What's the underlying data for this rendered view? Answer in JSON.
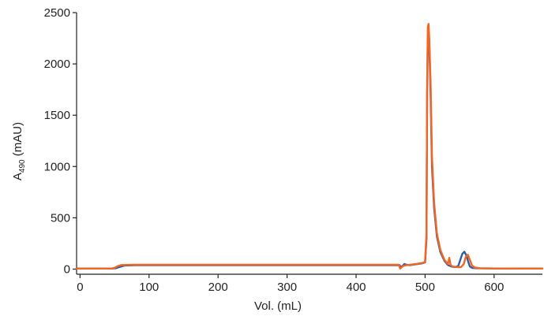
{
  "chart_data": {
    "type": "line",
    "title": "",
    "xlabel": "Vol. (mL)",
    "ylabel_main": "A",
    "ylabel_sub": "490",
    "ylabel_unit": " (mAU)",
    "xlim": [
      -5,
      670
    ],
    "ylim": [
      -50,
      2500
    ],
    "xticks": [
      0,
      100,
      200,
      300,
      400,
      500,
      600
    ],
    "yticks": [
      0,
      500,
      1000,
      1500,
      2000,
      2500
    ],
    "grid": false,
    "legend": "none",
    "series": [
      {
        "color": "#2e5fa3",
        "width": 2.4,
        "x": [
          -5,
          45,
          52,
          58,
          65,
          80,
          150,
          250,
          350,
          450,
          463,
          465,
          468,
          470,
          473,
          478,
          485,
          495,
          500,
          502,
          503,
          504,
          505,
          506,
          508,
          510,
          513,
          517,
          522,
          528,
          533,
          538,
          543,
          548,
          551,
          554,
          557,
          560,
          563,
          565,
          568,
          575,
          600,
          640,
          670
        ],
        "y": [
          5,
          5,
          8,
          22,
          35,
          38,
          38,
          38,
          38,
          38,
          38,
          20,
          35,
          50,
          42,
          38,
          45,
          55,
          65,
          300,
          1700,
          2280,
          2330,
          2200,
          1700,
          1000,
          600,
          320,
          170,
          80,
          40,
          25,
          20,
          30,
          90,
          150,
          170,
          130,
          60,
          25,
          12,
          8,
          6,
          5,
          5
        ]
      },
      {
        "color": "#f26522",
        "width": 2.4,
        "x": [
          -5,
          45,
          50,
          55,
          60,
          80,
          150,
          250,
          350,
          450,
          462,
          464,
          467,
          470,
          475,
          485,
          495,
          500,
          502,
          503,
          504,
          505,
          506,
          508,
          510,
          513,
          517,
          522,
          528,
          533,
          535,
          537,
          540,
          545,
          552,
          556,
          559,
          562,
          565,
          568,
          572,
          580,
          600,
          640,
          670
        ],
        "y": [
          5,
          5,
          12,
          30,
          40,
          42,
          42,
          42,
          42,
          42,
          42,
          5,
          25,
          35,
          40,
          48,
          58,
          68,
          350,
          1800,
          2360,
          2390,
          2250,
          1800,
          1100,
          650,
          350,
          190,
          90,
          50,
          110,
          40,
          25,
          20,
          20,
          50,
          120,
          140,
          90,
          35,
          15,
          8,
          6,
          5,
          5
        ]
      }
    ]
  }
}
